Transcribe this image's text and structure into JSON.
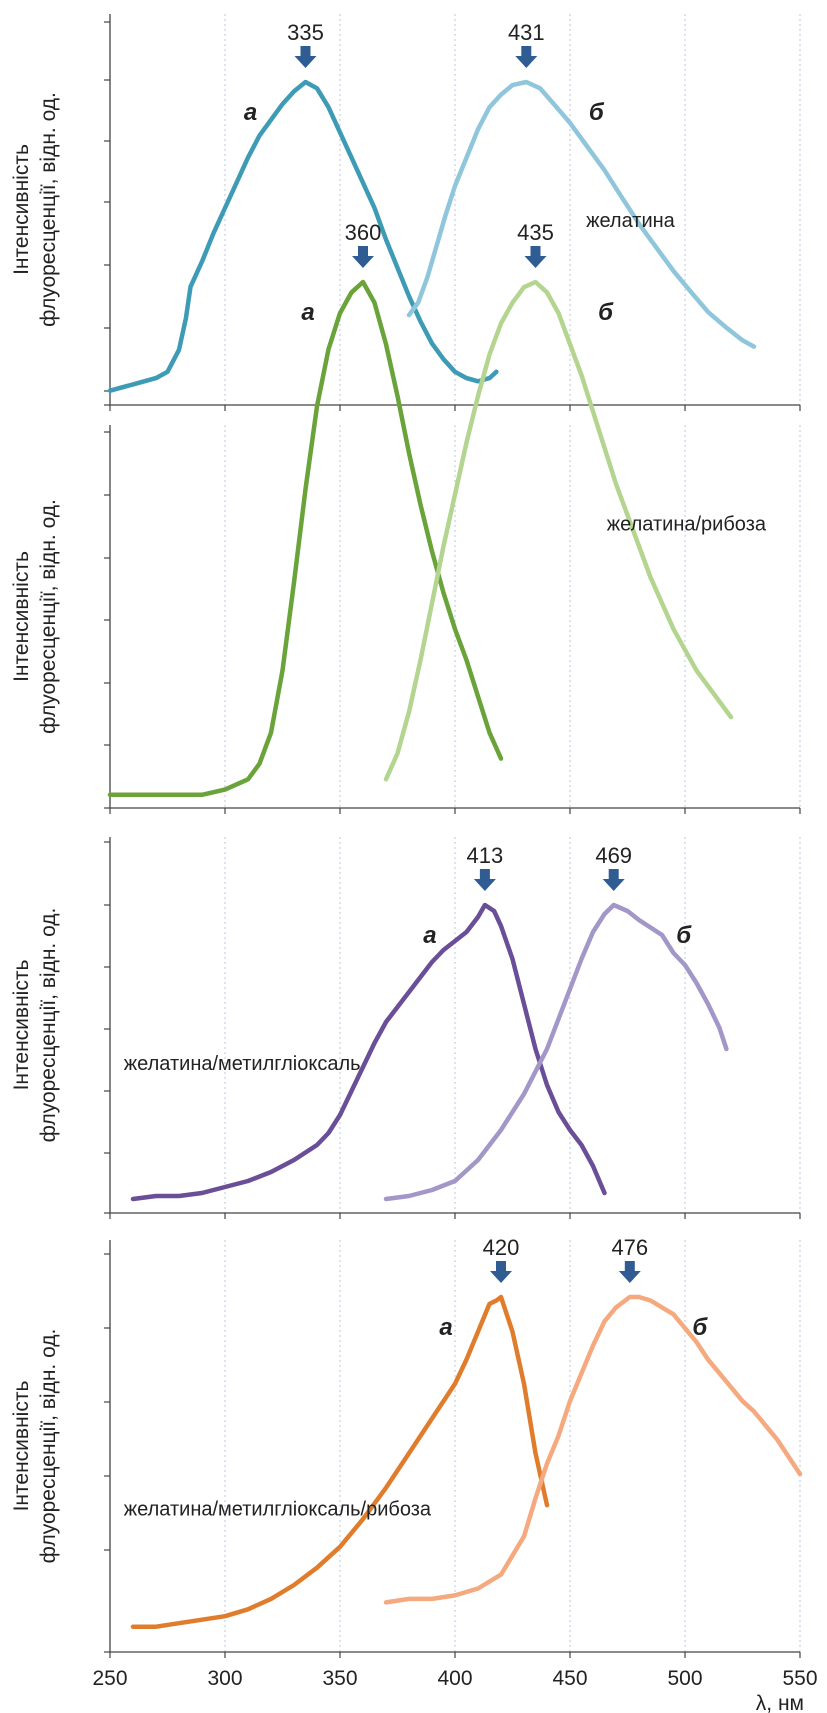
{
  "chart_data": [
    {
      "type": "line",
      "ylabel": [
        "Інтенсивність",
        "флуоресценції, відн. од."
      ],
      "xlim": [
        250,
        550
      ],
      "ylim": [
        0,
        1
      ],
      "vgrid": [
        300,
        350,
        400,
        450,
        500,
        550
      ],
      "sample_label": {
        "text": "желатина",
        "x": 457,
        "y": 0.54
      },
      "series": [
        {
          "name": "а",
          "color": "#3d9bb5",
          "peak": 335,
          "points": [
            [
              250,
              0.02
            ],
            [
              260,
              0.04
            ],
            [
              270,
              0.06
            ],
            [
              275,
              0.08
            ],
            [
              280,
              0.15
            ],
            [
              283,
              0.25
            ],
            [
              285,
              0.35
            ],
            [
              290,
              0.43
            ],
            [
              295,
              0.52
            ],
            [
              300,
              0.6
            ],
            [
              305,
              0.68
            ],
            [
              310,
              0.76
            ],
            [
              315,
              0.83
            ],
            [
              320,
              0.88
            ],
            [
              325,
              0.93
            ],
            [
              330,
              0.97
            ],
            [
              335,
              1.0
            ],
            [
              340,
              0.98
            ],
            [
              345,
              0.92
            ],
            [
              350,
              0.84
            ],
            [
              355,
              0.76
            ],
            [
              360,
              0.68
            ],
            [
              365,
              0.6
            ],
            [
              370,
              0.5
            ],
            [
              375,
              0.41
            ],
            [
              380,
              0.32
            ],
            [
              385,
              0.24
            ],
            [
              390,
              0.17
            ],
            [
              395,
              0.12
            ],
            [
              400,
              0.08
            ],
            [
              405,
              0.06
            ],
            [
              410,
              0.05
            ],
            [
              415,
              0.06
            ],
            [
              418,
              0.08
            ]
          ]
        },
        {
          "name": "б",
          "color": "#8fc6dc",
          "peak": 431,
          "points": [
            [
              380,
              0.26
            ],
            [
              384,
              0.3
            ],
            [
              388,
              0.38
            ],
            [
              392,
              0.48
            ],
            [
              396,
              0.58
            ],
            [
              400,
              0.67
            ],
            [
              405,
              0.76
            ],
            [
              410,
              0.85
            ],
            [
              415,
              0.92
            ],
            [
              420,
              0.96
            ],
            [
              425,
              0.99
            ],
            [
              431,
              1.0
            ],
            [
              437,
              0.98
            ],
            [
              443,
              0.93
            ],
            [
              450,
              0.87
            ],
            [
              457,
              0.8
            ],
            [
              465,
              0.72
            ],
            [
              472,
              0.64
            ],
            [
              480,
              0.55
            ],
            [
              488,
              0.47
            ],
            [
              495,
              0.4
            ],
            [
              503,
              0.33
            ],
            [
              510,
              0.27
            ],
            [
              518,
              0.22
            ],
            [
              525,
              0.18
            ],
            [
              530,
              0.16
            ]
          ]
        }
      ]
    },
    {
      "type": "line",
      "ylabel": [
        "Інтенсивність",
        "флуоресценції, відн. од."
      ],
      "xlim": [
        250,
        550
      ],
      "ylim": [
        0,
        1
      ],
      "vgrid": [
        300,
        350,
        400,
        450,
        500,
        550
      ],
      "sample_label": {
        "text": "желатина/рибоза",
        "x": 466,
        "y": 0.52
      },
      "series": [
        {
          "name": "а",
          "color": "#6aa339",
          "peak": 360,
          "points": [
            [
              250,
              0.01
            ],
            [
              270,
              0.01
            ],
            [
              290,
              0.01
            ],
            [
              300,
              0.02
            ],
            [
              310,
              0.04
            ],
            [
              315,
              0.07
            ],
            [
              320,
              0.13
            ],
            [
              325,
              0.25
            ],
            [
              330,
              0.42
            ],
            [
              335,
              0.6
            ],
            [
              340,
              0.76
            ],
            [
              345,
              0.87
            ],
            [
              350,
              0.94
            ],
            [
              355,
              0.98
            ],
            [
              360,
              1.0
            ],
            [
              365,
              0.96
            ],
            [
              370,
              0.88
            ],
            [
              375,
              0.78
            ],
            [
              380,
              0.67
            ],
            [
              385,
              0.57
            ],
            [
              390,
              0.48
            ],
            [
              395,
              0.4
            ],
            [
              400,
              0.33
            ],
            [
              405,
              0.27
            ],
            [
              410,
              0.2
            ],
            [
              415,
              0.13
            ],
            [
              420,
              0.08
            ]
          ]
        },
        {
          "name": "б",
          "color": "#b4d58f",
          "peak": 435,
          "points": [
            [
              370,
              0.04
            ],
            [
              375,
              0.09
            ],
            [
              380,
              0.17
            ],
            [
              385,
              0.27
            ],
            [
              390,
              0.38
            ],
            [
              395,
              0.49
            ],
            [
              400,
              0.59
            ],
            [
              405,
              0.69
            ],
            [
              410,
              0.78
            ],
            [
              415,
              0.86
            ],
            [
              420,
              0.92
            ],
            [
              425,
              0.96
            ],
            [
              430,
              0.99
            ],
            [
              435,
              1.0
            ],
            [
              440,
              0.98
            ],
            [
              445,
              0.94
            ],
            [
              450,
              0.88
            ],
            [
              455,
              0.82
            ],
            [
              460,
              0.75
            ],
            [
              465,
              0.68
            ],
            [
              470,
              0.61
            ],
            [
              475,
              0.55
            ],
            [
              480,
              0.49
            ],
            [
              485,
              0.43
            ],
            [
              490,
              0.38
            ],
            [
              495,
              0.33
            ],
            [
              500,
              0.29
            ],
            [
              505,
              0.25
            ],
            [
              510,
              0.22
            ],
            [
              515,
              0.19
            ],
            [
              520,
              0.16
            ]
          ]
        }
      ]
    },
    {
      "type": "line",
      "ylabel": [
        "Інтенсивність",
        "флуоресценції, відн. од."
      ],
      "xlim": [
        250,
        550
      ],
      "ylim": [
        0,
        1
      ],
      "vgrid": [
        300,
        350,
        400,
        450,
        500,
        550
      ],
      "sample_label": {
        "text": "желатина/метилгліоксаль",
        "x": 256,
        "y": 0.45
      },
      "series": [
        {
          "name": "а",
          "color": "#6a4e97",
          "peak": 413,
          "points": [
            [
              260,
              0.02
            ],
            [
              270,
              0.03
            ],
            [
              280,
              0.03
            ],
            [
              290,
              0.04
            ],
            [
              300,
              0.06
            ],
            [
              310,
              0.08
            ],
            [
              320,
              0.11
            ],
            [
              330,
              0.15
            ],
            [
              340,
              0.2
            ],
            [
              345,
              0.24
            ],
            [
              350,
              0.3
            ],
            [
              355,
              0.38
            ],
            [
              360,
              0.46
            ],
            [
              365,
              0.54
            ],
            [
              370,
              0.61
            ],
            [
              375,
              0.66
            ],
            [
              380,
              0.71
            ],
            [
              385,
              0.76
            ],
            [
              390,
              0.81
            ],
            [
              395,
              0.85
            ],
            [
              400,
              0.88
            ],
            [
              405,
              0.91
            ],
            [
              410,
              0.96
            ],
            [
              413,
              1.0
            ],
            [
              417,
              0.98
            ],
            [
              420,
              0.93
            ],
            [
              425,
              0.82
            ],
            [
              430,
              0.67
            ],
            [
              435,
              0.52
            ],
            [
              440,
              0.4
            ],
            [
              445,
              0.31
            ],
            [
              450,
              0.25
            ],
            [
              455,
              0.2
            ],
            [
              460,
              0.13
            ],
            [
              465,
              0.04
            ]
          ]
        },
        {
          "name": "б",
          "color": "#a396c8",
          "peak": 469,
          "points": [
            [
              370,
              0.02
            ],
            [
              380,
              0.03
            ],
            [
              390,
              0.05
            ],
            [
              400,
              0.08
            ],
            [
              410,
              0.15
            ],
            [
              420,
              0.25
            ],
            [
              430,
              0.37
            ],
            [
              440,
              0.52
            ],
            [
              445,
              0.62
            ],
            [
              450,
              0.72
            ],
            [
              455,
              0.82
            ],
            [
              460,
              0.91
            ],
            [
              465,
              0.97
            ],
            [
              469,
              1.0
            ],
            [
              475,
              0.98
            ],
            [
              480,
              0.95
            ],
            [
              490,
              0.9
            ],
            [
              495,
              0.84
            ],
            [
              500,
              0.8
            ],
            [
              505,
              0.74
            ],
            [
              510,
              0.67
            ],
            [
              515,
              0.59
            ],
            [
              518,
              0.52
            ]
          ]
        }
      ]
    },
    {
      "type": "line",
      "ylabel": [
        "Інтенсивність",
        "флуоресценції, відн. од."
      ],
      "xlabel": "λ, нм",
      "xlim": [
        250,
        550
      ],
      "xticks": [
        250,
        300,
        350,
        400,
        450,
        500,
        550
      ],
      "ylim": [
        0,
        1
      ],
      "vgrid": [
        300,
        350,
        400,
        450,
        500,
        550
      ],
      "sample_label": {
        "text": "желатина/метилгліоксаль/рибоза",
        "x": 256,
        "y": 0.37
      },
      "series": [
        {
          "name": "а",
          "color": "#e07d2c",
          "peak": 420,
          "points": [
            [
              260,
              0.05
            ],
            [
              270,
              0.05
            ],
            [
              280,
              0.06
            ],
            [
              290,
              0.07
            ],
            [
              300,
              0.08
            ],
            [
              310,
              0.1
            ],
            [
              320,
              0.13
            ],
            [
              330,
              0.17
            ],
            [
              340,
              0.22
            ],
            [
              350,
              0.28
            ],
            [
              360,
              0.36
            ],
            [
              370,
              0.45
            ],
            [
              380,
              0.55
            ],
            [
              390,
              0.65
            ],
            [
              400,
              0.75
            ],
            [
              405,
              0.82
            ],
            [
              410,
              0.9
            ],
            [
              415,
              0.98
            ],
            [
              418,
              0.99
            ],
            [
              420,
              1.0
            ],
            [
              425,
              0.9
            ],
            [
              430,
              0.75
            ],
            [
              435,
              0.55
            ],
            [
              440,
              0.4
            ]
          ]
        },
        {
          "name": "б",
          "color": "#f5a97f",
          "peak": 476,
          "points": [
            [
              370,
              0.12
            ],
            [
              380,
              0.13
            ],
            [
              390,
              0.13
            ],
            [
              400,
              0.14
            ],
            [
              410,
              0.16
            ],
            [
              420,
              0.2
            ],
            [
              430,
              0.31
            ],
            [
              435,
              0.42
            ],
            [
              440,
              0.52
            ],
            [
              445,
              0.6
            ],
            [
              450,
              0.7
            ],
            [
              455,
              0.78
            ],
            [
              460,
              0.86
            ],
            [
              465,
              0.93
            ],
            [
              470,
              0.97
            ],
            [
              476,
              1.0
            ],
            [
              480,
              1.0
            ],
            [
              485,
              0.99
            ],
            [
              490,
              0.97
            ],
            [
              495,
              0.95
            ],
            [
              500,
              0.91
            ],
            [
              505,
              0.87
            ],
            [
              510,
              0.82
            ],
            [
              515,
              0.78
            ],
            [
              520,
              0.74
            ],
            [
              525,
              0.7
            ],
            [
              530,
              0.67
            ],
            [
              535,
              0.63
            ],
            [
              540,
              0.59
            ],
            [
              545,
              0.54
            ],
            [
              550,
              0.49
            ]
          ]
        }
      ]
    }
  ]
}
